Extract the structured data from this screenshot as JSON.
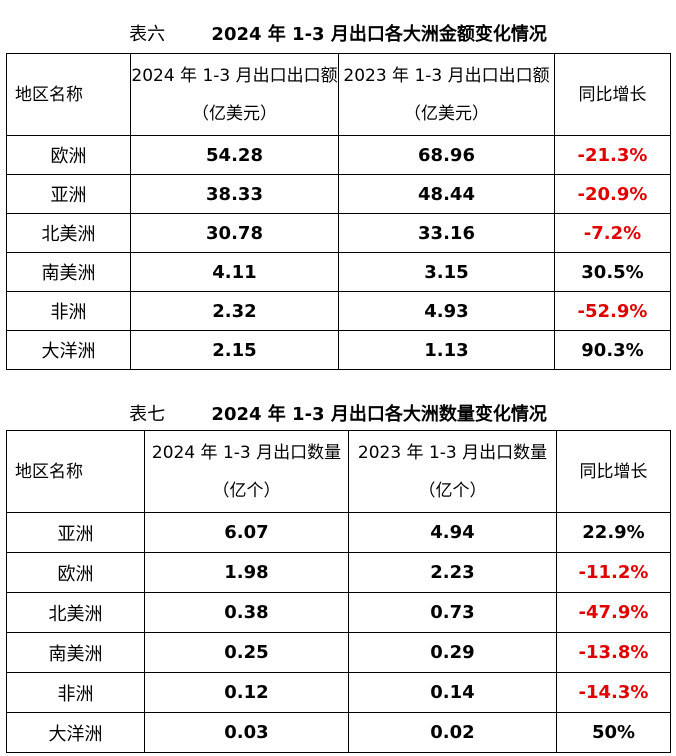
{
  "table6": {
    "caption_label": "表六",
    "caption_title": "2024 年 1-3 月出口各大洲金额变化情况",
    "headers": [
      "地区名称",
      "2024 年 1-3 月出口出口额（亿美元）",
      "2023 年 1-3 月出口出口额（亿美元）",
      "同比增长"
    ],
    "rows": [
      {
        "region": "欧洲",
        "v2024": "54.28",
        "v2023": "68.96",
        "growth": "-21.3%"
      },
      {
        "region": "亚洲",
        "v2024": "38.33",
        "v2023": "48.44",
        "growth": "-20.9%"
      },
      {
        "region": "北美洲",
        "v2024": "30.78",
        "v2023": "33.16",
        "growth": "-7.2%"
      },
      {
        "region": "南美洲",
        "v2024": "4.11",
        "v2023": "3.15",
        "growth": "30.5%"
      },
      {
        "region": "非洲",
        "v2024": "2.32",
        "v2023": "4.93",
        "growth": "-52.9%"
      },
      {
        "region": "大洋洲",
        "v2024": "2.15",
        "v2023": "1.13",
        "growth": "90.3%"
      }
    ]
  },
  "table7": {
    "caption_label": "表七",
    "caption_title": "2024 年 1-3 月出口各大洲数量变化情况",
    "headers": [
      "地区名称",
      "2024 年 1-3 月出口数量（亿个）",
      "2023 年 1-3 月出口数量（亿个）",
      "同比增长"
    ],
    "rows": [
      {
        "region": "亚洲",
        "v2024": "6.07",
        "v2023": "4.94",
        "growth": "22.9%"
      },
      {
        "region": "欧洲",
        "v2024": "1.98",
        "v2023": "2.23",
        "growth": "-11.2%"
      },
      {
        "region": "北美洲",
        "v2024": "0.38",
        "v2023": "0.73",
        "growth": "-47.9%"
      },
      {
        "region": "南美洲",
        "v2024": "0.25",
        "v2023": "0.29",
        "growth": "-13.8%"
      },
      {
        "region": "非洲",
        "v2024": "0.12",
        "v2023": "0.14",
        "growth": "-14.3%"
      },
      {
        "region": "大洋洲",
        "v2024": "0.03",
        "v2023": "0.02",
        "growth": "50%"
      }
    ]
  },
  "colors": {
    "negative": "#e00000",
    "positive": "#000000",
    "border": "#000000"
  }
}
